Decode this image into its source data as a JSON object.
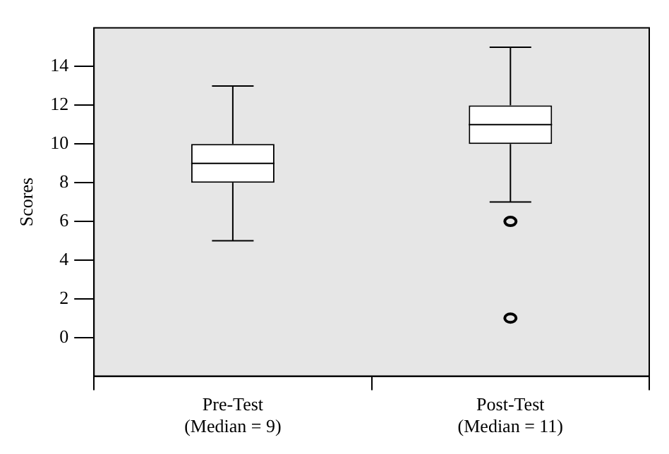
{
  "chart_data": {
    "type": "box",
    "ylabel": "Scores",
    "categories": [
      "Pre-Test\n(Median = 9)",
      "Post-Test\n(Median = 11)"
    ],
    "boxes": [
      {
        "low": 5,
        "q1": 8,
        "median": 9,
        "q3": 10,
        "high": 13
      },
      {
        "low": 7,
        "q1": 10,
        "median": 11,
        "q3": 12,
        "high": 15,
        "outliers": [
          6,
          1
        ]
      }
    ],
    "ylim": [
      -2,
      16
    ],
    "yticks": [
      0,
      2,
      4,
      6,
      8,
      10,
      12,
      14
    ],
    "grid": false,
    "legend": false
  }
}
